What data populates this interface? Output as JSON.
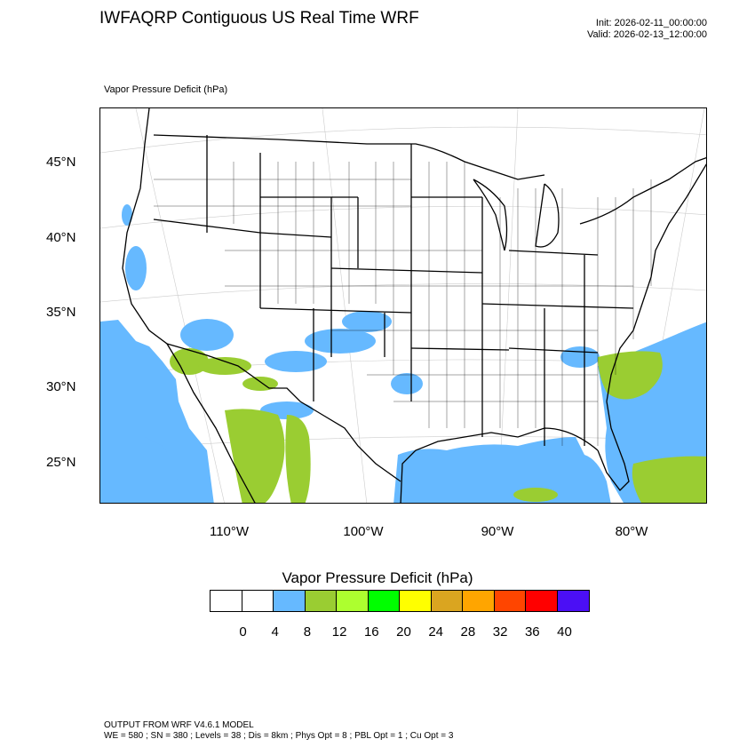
{
  "header": {
    "title": "IWFAQRP Contiguous US Real Time WRF",
    "init": "Init: 2026-02-11_00:00:00",
    "valid": "Valid: 2026-02-13_12:00:00"
  },
  "map": {
    "subtitle": "Vapor Pressure Deficit   (hPa)",
    "lat_labels": [
      "45°N",
      "40°N",
      "35°N",
      "30°N",
      "25°N"
    ],
    "lon_labels": [
      "110°W",
      "100°W",
      "90°W",
      "80°W"
    ],
    "colors": {
      "vpd_4_8": "#66b9ff",
      "vpd_8_12": "#9acd32",
      "ocean_lines": "#000000"
    }
  },
  "legend": {
    "title": "Vapor Pressure Deficit  (hPa)",
    "tick_labels": [
      "0",
      "4",
      "8",
      "12",
      "16",
      "20",
      "24",
      "28",
      "32",
      "36",
      "40"
    ],
    "colors": [
      "#ffffff",
      "#ffffff",
      "#66b9ff",
      "#9acd32",
      "#adff2f",
      "#00ff00",
      "#ffff00",
      "#daa520",
      "#ffa500",
      "#ff4500",
      "#ff0000",
      "#4b0ff5"
    ]
  },
  "footer": {
    "line1": "OUTPUT FROM WRF V4.6.1 MODEL",
    "line2": "WE = 580 ; SN = 380 ; Levels = 38 ; Dis = 8km ; Phys Opt = 8 ; PBL Opt = 1 ; Cu Opt = 3"
  }
}
